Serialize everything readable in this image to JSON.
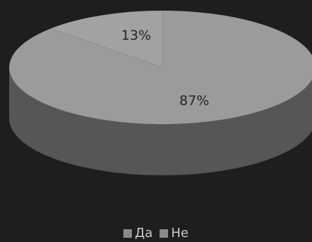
{
  "chart_data": {
    "type": "pie",
    "style": "3d",
    "categories": [
      "Да",
      "Не"
    ],
    "values": [
      13,
      87
    ],
    "data_labels": [
      "13%",
      "87%"
    ],
    "legend": {
      "position": "bottom",
      "entries": [
        "Да",
        "Не"
      ]
    },
    "colors": {
      "background": "#1e1e1e",
      "slice_top": "#9b9b9b",
      "slice_side": "#565656",
      "highlight_slice": "#a2a2a2",
      "legend_swatch": "#8a8a8a",
      "label_text": "#262626",
      "legend_text": "#c9c9c9"
    }
  }
}
